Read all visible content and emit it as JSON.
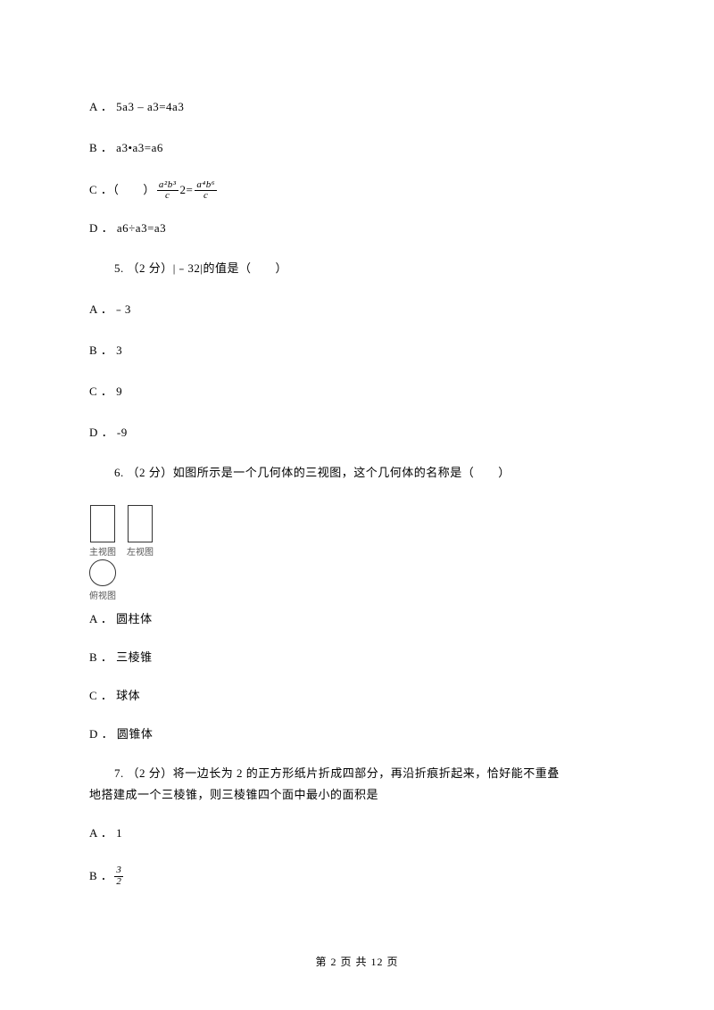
{
  "options_prev": {
    "a": "A ． 5a3 – a3=4a3",
    "b": "B ． a3•a3=a6",
    "c_prefix": "C ．（　　）",
    "c_frac1_num": "a²b³",
    "c_frac1_den": "c",
    "c_mid": "2=",
    "c_frac2_num": "a⁴b⁶",
    "c_frac2_den": "c",
    "d": "D ． a6÷a3=a3"
  },
  "q5": {
    "stem": "5. （2 分）|﹣32|的值是（　　）",
    "a": "A ．﹣3",
    "b": "B ． 3",
    "c": "C ． 9",
    "d": "D ． -9"
  },
  "q6": {
    "stem": "6. （2 分）如图所示是一个几何体的三视图，这个几何体的名称是（　　）",
    "views": {
      "front": "主视图",
      "left": "左视图",
      "top": "俯视图"
    },
    "a": "A ． 圆柱体",
    "b": "B ． 三棱锥",
    "c": "C ． 球体",
    "d": "D ． 圆锥体"
  },
  "q7": {
    "stem_indent": "7. （2 分）将一边长为 2 的正方形纸片折成四部分，再沿折痕折起来，恰好能不重叠",
    "stem_cont": "地搭建成一个三棱锥，则三棱锥四个面中最小的面积是",
    "a": "A ． 1",
    "b_prefix": "B ．",
    "b_frac_num": "3",
    "b_frac_den": "2"
  },
  "footer": "第 2 页 共 12 页"
}
